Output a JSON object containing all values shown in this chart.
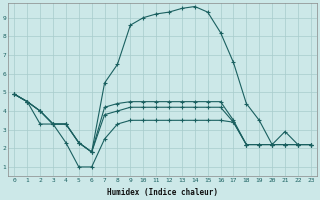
{
  "xlabel": "Humidex (Indice chaleur)",
  "bg_color": "#cce8e8",
  "grid_color": "#a8cccc",
  "line_color": "#1a6060",
  "xlim": [
    0,
    23
  ],
  "ylim": [
    0.5,
    9.8
  ],
  "xticks": [
    0,
    1,
    2,
    3,
    4,
    5,
    6,
    7,
    8,
    9,
    10,
    11,
    12,
    13,
    14,
    15,
    16,
    17,
    18,
    19,
    20,
    21,
    22,
    23
  ],
  "yticks": [
    1,
    2,
    3,
    4,
    5,
    6,
    7,
    8,
    9
  ],
  "lines": [
    {
      "x": [
        0,
        1,
        2,
        3,
        4,
        5,
        6,
        7,
        8,
        9,
        10,
        11,
        12,
        13,
        14,
        15,
        16,
        17,
        18,
        19,
        20,
        21,
        22,
        23
      ],
      "y": [
        4.9,
        4.5,
        4.0,
        3.3,
        3.3,
        2.3,
        1.8,
        5.5,
        6.5,
        8.6,
        9.0,
        9.2,
        9.3,
        9.5,
        9.6,
        9.3,
        8.2,
        6.6,
        4.4,
        3.5,
        2.2,
        2.9,
        2.2,
        2.2
      ]
    },
    {
      "x": [
        0,
        1,
        2,
        3,
        4,
        5,
        6,
        7,
        8,
        9,
        10,
        11,
        12,
        13,
        14,
        15,
        16,
        17,
        18,
        19,
        20,
        21,
        22,
        23
      ],
      "y": [
        4.9,
        4.5,
        4.0,
        3.3,
        3.3,
        2.3,
        1.8,
        4.2,
        4.4,
        4.5,
        4.5,
        4.5,
        4.5,
        4.5,
        4.5,
        4.5,
        4.5,
        3.5,
        2.2,
        2.2,
        2.2,
        2.2,
        2.2,
        2.2
      ]
    },
    {
      "x": [
        0,
        1,
        2,
        3,
        4,
        5,
        6,
        7,
        8,
        9,
        10,
        11,
        12,
        13,
        14,
        15,
        16,
        17,
        18,
        19,
        20,
        21,
        22,
        23
      ],
      "y": [
        4.9,
        4.5,
        4.0,
        3.3,
        3.3,
        2.3,
        1.8,
        3.8,
        4.0,
        4.2,
        4.2,
        4.2,
        4.2,
        4.2,
        4.2,
        4.2,
        4.2,
        3.4,
        2.2,
        2.2,
        2.2,
        2.2,
        2.2,
        2.2
      ]
    },
    {
      "x": [
        0,
        1,
        2,
        3,
        4,
        5,
        6,
        7,
        8,
        9,
        10,
        11,
        12,
        13,
        14,
        15,
        16,
        17,
        18,
        19,
        20,
        21,
        22,
        23
      ],
      "y": [
        4.9,
        4.5,
        3.3,
        3.3,
        2.3,
        1.0,
        1.0,
        2.5,
        3.3,
        3.5,
        3.5,
        3.5,
        3.5,
        3.5,
        3.5,
        3.5,
        3.5,
        3.4,
        2.2,
        2.2,
        2.2,
        2.2,
        2.2,
        2.2
      ]
    }
  ]
}
